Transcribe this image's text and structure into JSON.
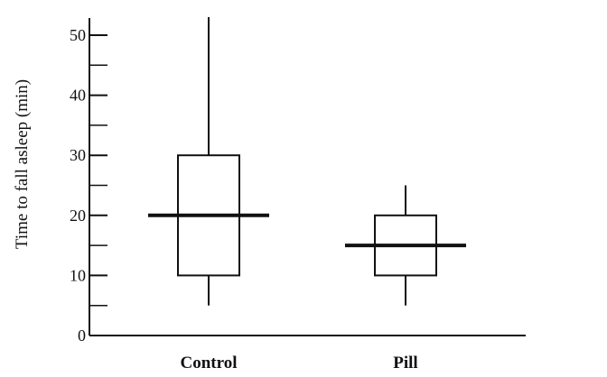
{
  "chart_data": {
    "type": "boxplot",
    "ylabel": "Time to fall asleep (min)",
    "ylim": [
      0,
      53
    ],
    "y_major_ticks": [
      0,
      10,
      20,
      30,
      40,
      50
    ],
    "y_minor_step": 5,
    "categories": [
      "Control",
      "Pill"
    ],
    "boxes": [
      {
        "category": "Control",
        "min": 5,
        "q1": 10,
        "median": 20,
        "q3": 30,
        "max": 53
      },
      {
        "category": "Pill",
        "min": 5,
        "q1": 10,
        "median": 15,
        "q3": 20,
        "max": 25
      }
    ]
  }
}
